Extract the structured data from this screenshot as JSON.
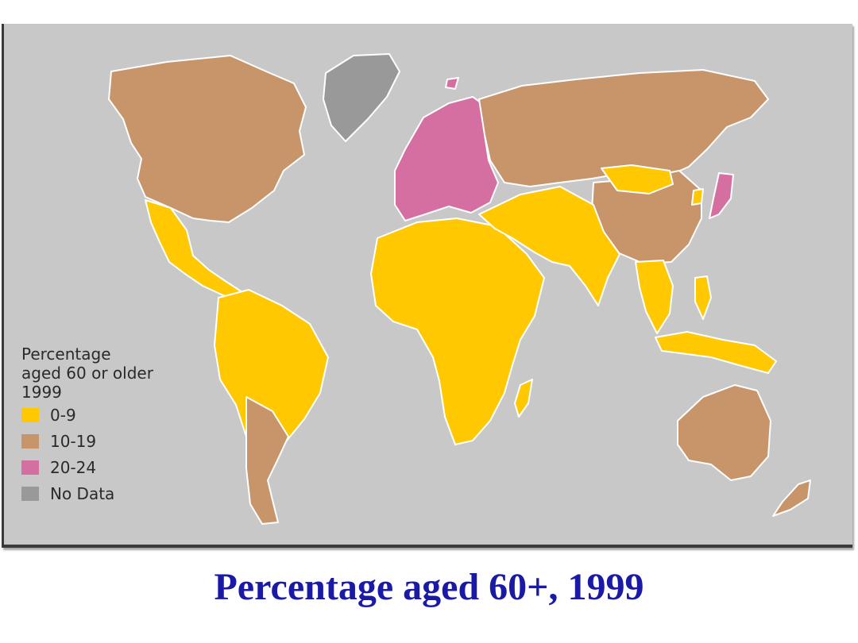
{
  "legend": {
    "title_line1": "Percentage",
    "title_line2": "aged 60 or older",
    "year": "1999",
    "items": [
      {
        "label": "0-9",
        "color": "#ffc800"
      },
      {
        "label": "10-19",
        "color": "#c8956b"
      },
      {
        "label": "20-24",
        "color": "#d56fa2"
      },
      {
        "label": "No Data",
        "color": "#999999"
      }
    ]
  },
  "caption": "Percentage aged 60+,  1999",
  "colors": {
    "ocean": "#c8c8c8",
    "border": "#ffffff"
  }
}
